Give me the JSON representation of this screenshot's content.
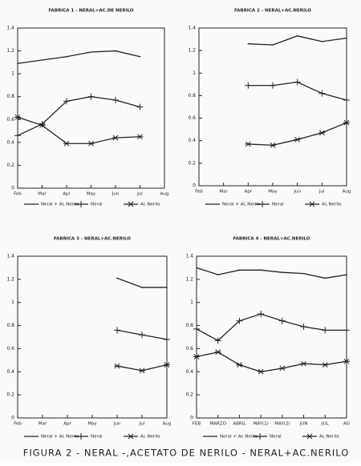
{
  "chart_data": [
    {
      "type": "line",
      "title": "FABRICA 1 - NERAL+AC.DE NERILO",
      "categories": [
        "Feb",
        "Mar",
        "Apr",
        "May",
        "Jun",
        "Jul",
        "Aug"
      ],
      "ylim": [
        0,
        1.4
      ],
      "yticks": [
        0,
        0.2,
        0.4,
        0.6,
        0.8,
        1,
        1.2,
        1.4
      ],
      "series": [
        {
          "name": "Neral + Ac.Nerilo",
          "color": "#222",
          "marker": "none",
          "values": [
            1.09,
            1.12,
            1.15,
            1.19,
            1.2,
            1.15,
            null
          ]
        },
        {
          "name": "Neral",
          "color": "#222",
          "marker": "plus",
          "values": [
            0.46,
            0.56,
            0.76,
            0.8,
            0.77,
            0.71,
            null
          ]
        },
        {
          "name": "Ac.Nerilo",
          "color": "#222",
          "marker": "star",
          "values": [
            0.62,
            0.55,
            0.39,
            0.39,
            0.44,
            0.45,
            null
          ]
        }
      ]
    },
    {
      "type": "line",
      "title": "FABRICA 2 - NERAL+AC.NERILO",
      "categories": [
        "Feb",
        "Mar",
        "Apr",
        "May",
        "Jun",
        "Jul",
        "Aug"
      ],
      "ylim": [
        0,
        1.4
      ],
      "yticks": [
        0,
        0.2,
        0.4,
        0.6,
        0.8,
        1,
        1.2,
        1.4
      ],
      "series": [
        {
          "name": "Neral + Ac.Nerilo",
          "color": "#222",
          "marker": "none",
          "values": [
            null,
            null,
            1.26,
            1.25,
            1.33,
            1.28,
            1.31
          ]
        },
        {
          "name": "Neral",
          "color": "#222",
          "marker": "plus",
          "values": [
            null,
            null,
            0.89,
            0.89,
            0.92,
            0.82,
            0.76
          ]
        },
        {
          "name": "Ac.Nerilo",
          "color": "#222",
          "marker": "star",
          "values": [
            null,
            null,
            0.37,
            0.36,
            0.41,
            0.47,
            0.56
          ]
        }
      ]
    },
    {
      "type": "line",
      "title": "FABRICA 3 - NERAL+AC.NERILO",
      "categories": [
        "Feb",
        "Mar",
        "Apr",
        "May",
        "Jun",
        "Jul",
        "Aug"
      ],
      "ylim": [
        0,
        1.4
      ],
      "yticks": [
        0,
        0.2,
        0.4,
        0.6,
        0.8,
        1,
        1.2,
        1.4
      ],
      "series": [
        {
          "name": "Neral + Ac.Nerilo",
          "color": "#222",
          "marker": "none",
          "values": [
            null,
            null,
            null,
            null,
            1.21,
            1.13,
            1.13
          ]
        },
        {
          "name": "Neral",
          "color": "#222",
          "marker": "plus",
          "values": [
            null,
            null,
            null,
            null,
            0.76,
            0.72,
            0.68
          ]
        },
        {
          "name": "Ac.Nerilo",
          "color": "#222",
          "marker": "star",
          "values": [
            null,
            null,
            null,
            null,
            0.45,
            0.41,
            0.46
          ]
        }
      ]
    },
    {
      "type": "line",
      "title": "FABRICA 4 - NERAL+AC.NERILO",
      "categories": [
        "FEB",
        "MARZO",
        "ABRIL",
        "MAY(1)",
        "MAY(2)",
        "JUN",
        "JUL",
        "AG"
      ],
      "ylim": [
        0,
        1.4
      ],
      "yticks": [
        0,
        0.2,
        0.4,
        0.6,
        0.8,
        1,
        1.2,
        1.4
      ],
      "series": [
        {
          "name": "Neral + Ac.Nerilo",
          "color": "#222",
          "marker": "none",
          "values": [
            1.3,
            1.24,
            1.28,
            1.28,
            1.26,
            1.25,
            1.21,
            1.24
          ]
        },
        {
          "name": "Neral",
          "color": "#222",
          "marker": "plus",
          "values": [
            0.77,
            0.67,
            0.84,
            0.9,
            0.84,
            0.79,
            0.76,
            0.76
          ]
        },
        {
          "name": "Ac.Nerilo",
          "color": "#222",
          "marker": "star",
          "values": [
            0.53,
            0.57,
            0.46,
            0.4,
            0.43,
            0.47,
            0.46,
            0.49
          ]
        }
      ]
    }
  ],
  "caption": "FIGURA 2 - NERAL -,ACETATO DE NERILO - NERAL+AC.NERILO"
}
